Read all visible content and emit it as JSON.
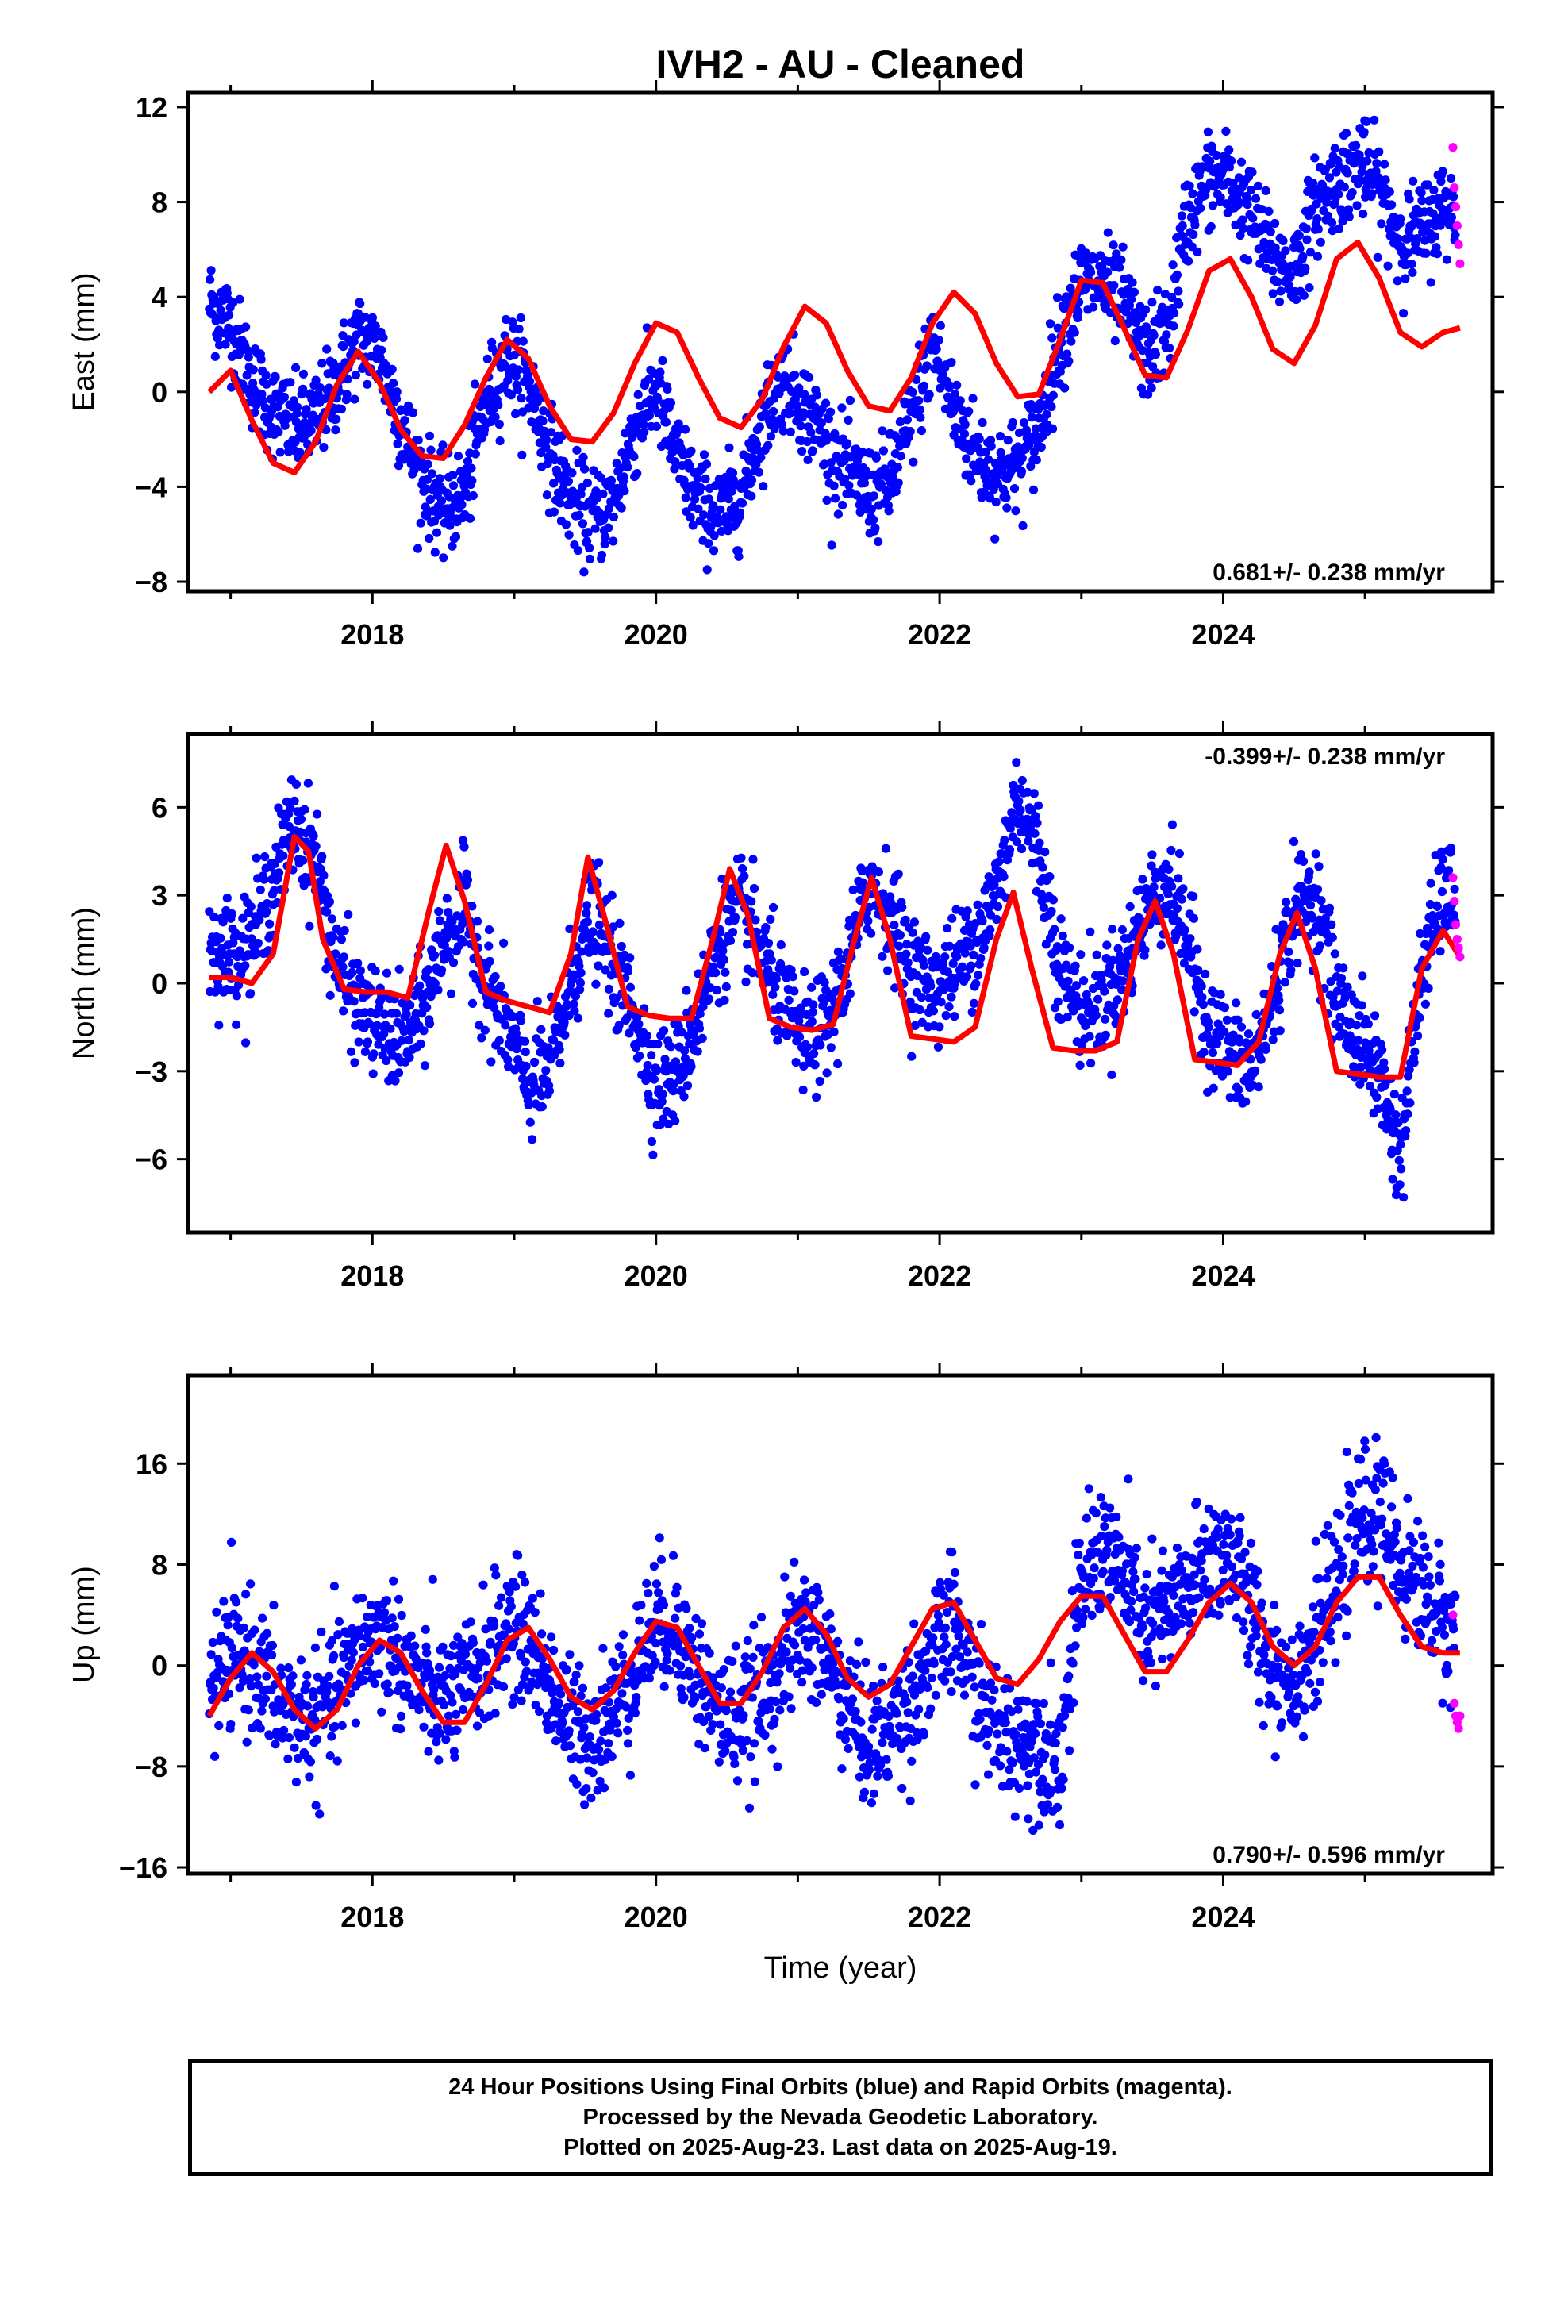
{
  "title": "IVH2  - AU - Cleaned",
  "xlabel": "Time (year)",
  "footer": {
    "line1": "24 Hour Positions Using Final Orbits (blue) and Rapid Orbits (magenta).",
    "line2": "Processed by the Nevada Geodetic Laboratory.",
    "line3": "Plotted on 2025-Aug-23. Last data on 2025-Aug-19."
  },
  "colors": {
    "final": "#0000ff",
    "rapid": "#ff00ff",
    "model": "#ff0000"
  },
  "chart_data": [
    {
      "type": "scatter",
      "title": "IVH2  - AU - Cleaned",
      "ylabel": "East (mm)",
      "xlim": [
        2016.7,
        2025.9
      ],
      "ylim": [
        -8.4,
        12.6
      ],
      "xticks": [
        2018,
        2020,
        2022,
        2024
      ],
      "xtick_labels": [
        "2018",
        "2020",
        "2022",
        "2024"
      ],
      "yticks": [
        -8,
        -4,
        0,
        4,
        8,
        12
      ],
      "ytick_labels": [
        "−8",
        "−4",
        "0",
        "4",
        "8",
        "12"
      ],
      "rate": "0.681+/- 0.238 mm/yr",
      "rate_position": "bottom-right",
      "series": [
        {
          "role": "final",
          "x": [
            2016.85,
            2017.0,
            2017.15,
            2017.3,
            2017.45,
            2017.6,
            2017.75,
            2017.9,
            2018.05,
            2018.2,
            2018.35,
            2018.5,
            2018.65,
            2018.8,
            2018.95,
            2019.1,
            2019.25,
            2019.4,
            2019.55,
            2019.7,
            2019.85,
            2020.0,
            2020.15,
            2020.3,
            2020.45,
            2020.6,
            2020.75,
            2020.9,
            2021.05,
            2021.2,
            2021.35,
            2021.5,
            2021.65,
            2021.8,
            2021.95,
            2022.1,
            2022.25,
            2022.4,
            2022.55,
            2022.7,
            2022.85,
            2023.0,
            2023.15,
            2023.3,
            2023.45,
            2023.6,
            2023.75,
            2023.9,
            2024.05,
            2024.2,
            2024.35,
            2024.5,
            2024.65,
            2024.8,
            2024.95,
            2025.1,
            2025.25,
            2025.4,
            2025.55
          ],
          "y": [
            3.8,
            2.9,
            0.5,
            -0.8,
            -1.5,
            -1.2,
            0.4,
            2.3,
            1.6,
            -1.2,
            -3.6,
            -5.0,
            -4.3,
            -0.5,
            1.5,
            0.4,
            -2.5,
            -4.6,
            -5.3,
            -4.7,
            -1.5,
            0.1,
            -2.8,
            -4.6,
            -5.2,
            -4.3,
            -1.2,
            0.6,
            -0.6,
            -2.1,
            -3.4,
            -4.3,
            -3.8,
            -1.2,
            2.2,
            -0.8,
            -2.6,
            -3.4,
            -3.1,
            -1.6,
            2.3,
            4.6,
            4.6,
            3.7,
            1.6,
            2.4,
            7.4,
            9.0,
            8.8,
            7.4,
            5.6,
            5.0,
            7.8,
            8.9,
            9.6,
            8.6,
            6.4,
            6.8,
            7.8
          ],
          "spread": 1.0
        },
        {
          "role": "rapid",
          "x": [
            2025.62,
            2025.63,
            2025.64,
            2025.65,
            2025.66,
            2025.67
          ],
          "y": [
            10.3,
            8.6,
            7.8,
            7.0,
            6.2,
            5.4
          ]
        },
        {
          "role": "model",
          "x": [
            2016.85,
            2017.0,
            2017.15,
            2017.3,
            2017.45,
            2017.6,
            2017.75,
            2017.9,
            2018.05,
            2018.2,
            2018.35,
            2018.5,
            2018.65,
            2018.8,
            2018.95,
            2019.1,
            2019.25,
            2019.4,
            2019.55,
            2019.7,
            2019.85,
            2020.0,
            2020.15,
            2020.3,
            2020.45,
            2020.6,
            2020.75,
            2020.9,
            2021.05,
            2021.2,
            2021.35,
            2021.5,
            2021.65,
            2021.8,
            2021.95,
            2022.1,
            2022.25,
            2022.4,
            2022.55,
            2022.7,
            2022.85,
            2023.0,
            2023.15,
            2023.3,
            2023.45,
            2023.6,
            2023.75,
            2023.9,
            2024.05,
            2024.2,
            2024.35,
            2024.5,
            2024.65,
            2024.8,
            2024.95,
            2025.1,
            2025.25,
            2025.4,
            2025.55,
            2025.67
          ],
          "y": [
            0.0,
            0.9,
            -1.2,
            -3.0,
            -3.4,
            -2.1,
            0.3,
            1.7,
            0.4,
            -1.6,
            -2.7,
            -2.8,
            -1.4,
            0.6,
            2.2,
            1.4,
            -0.6,
            -2.0,
            -2.1,
            -0.9,
            1.2,
            2.9,
            2.5,
            0.6,
            -1.1,
            -1.5,
            -0.3,
            1.9,
            3.6,
            2.9,
            0.9,
            -0.6,
            -0.8,
            0.6,
            2.9,
            4.2,
            3.3,
            1.2,
            -0.2,
            -0.1,
            2.2,
            4.7,
            4.6,
            2.7,
            0.7,
            0.6,
            2.6,
            5.1,
            5.6,
            4.0,
            1.8,
            1.2,
            2.8,
            5.6,
            6.3,
            4.8,
            2.5,
            1.9,
            2.5,
            2.7
          ]
        }
      ]
    },
    {
      "type": "scatter",
      "ylabel": "North (mm)",
      "xlim": [
        2016.7,
        2025.9
      ],
      "ylim": [
        -8.5,
        8.5
      ],
      "xticks": [
        2018,
        2020,
        2022,
        2024
      ],
      "xtick_labels": [
        "2018",
        "2020",
        "2022",
        "2024"
      ],
      "yticks": [
        -6,
        -3,
        0,
        3,
        6
      ],
      "ytick_labels": [
        "−6",
        "−3",
        "0",
        "3",
        "6"
      ],
      "rate": "-0.399+/- 0.238 mm/yr",
      "rate_position": "top-right",
      "series": [
        {
          "role": "final",
          "x": [
            2016.85,
            2017.0,
            2017.15,
            2017.3,
            2017.45,
            2017.6,
            2017.75,
            2017.9,
            2018.05,
            2018.2,
            2018.35,
            2018.5,
            2018.65,
            2018.8,
            2018.95,
            2019.1,
            2019.25,
            2019.4,
            2019.55,
            2019.7,
            2019.85,
            2020.0,
            2020.15,
            2020.3,
            2020.45,
            2020.6,
            2020.75,
            2020.9,
            2021.05,
            2021.2,
            2021.35,
            2021.5,
            2021.65,
            2021.8,
            2021.95,
            2022.1,
            2022.25,
            2022.4,
            2022.55,
            2022.7,
            2022.85,
            2023.0,
            2023.15,
            2023.3,
            2023.45,
            2023.6,
            2023.75,
            2023.9,
            2024.05,
            2024.2,
            2024.35,
            2024.5,
            2024.65,
            2024.8,
            2024.95,
            2025.1,
            2025.25,
            2025.4,
            2025.55
          ],
          "y": [
            1.2,
            1.0,
            1.5,
            3.5,
            5.5,
            4.2,
            0.6,
            -0.8,
            -1.5,
            -2.0,
            -1.0,
            1.5,
            2.5,
            0.0,
            -1.5,
            -3.5,
            -3.0,
            0.0,
            2.5,
            0.5,
            -1.0,
            -3.5,
            -3.0,
            -1.0,
            1.5,
            2.5,
            1.0,
            -0.8,
            -2.0,
            -1.5,
            0.5,
            3.5,
            2.5,
            0.5,
            -0.2,
            0.5,
            1.5,
            3.0,
            6.5,
            4.5,
            0.5,
            -1.0,
            -0.5,
            0.5,
            2.5,
            3.5,
            1.5,
            -1.5,
            -2.5,
            -3.0,
            -0.5,
            2.5,
            3.0,
            -0.5,
            -2.0,
            -3.0,
            -6.0,
            0.5,
            3.0
          ],
          "spread": 0.9
        },
        {
          "role": "rapid",
          "x": [
            2025.62,
            2025.63,
            2025.64,
            2025.65,
            2025.66,
            2025.67
          ],
          "y": [
            3.6,
            2.8,
            2.0,
            1.5,
            1.2,
            0.9
          ]
        },
        {
          "role": "model",
          "x": [
            2016.85,
            2017.0,
            2017.15,
            2017.3,
            2017.45,
            2017.55,
            2017.65,
            2017.8,
            2017.95,
            2018.1,
            2018.25,
            2018.4,
            2018.52,
            2018.65,
            2018.8,
            2018.95,
            2019.1,
            2019.25,
            2019.4,
            2019.52,
            2019.65,
            2019.8,
            2019.95,
            2020.1,
            2020.25,
            2020.4,
            2020.52,
            2020.65,
            2020.8,
            2020.95,
            2021.1,
            2021.25,
            2021.4,
            2021.52,
            2021.65,
            2021.8,
            2021.95,
            2022.1,
            2022.25,
            2022.4,
            2022.52,
            2022.65,
            2022.8,
            2022.95,
            2023.1,
            2023.25,
            2023.4,
            2023.52,
            2023.65,
            2023.8,
            2023.95,
            2024.1,
            2024.25,
            2024.4,
            2024.52,
            2024.65,
            2024.8,
            2024.95,
            2025.1,
            2025.25,
            2025.4,
            2025.55,
            2025.67
          ],
          "y": [
            0.2,
            0.2,
            0.0,
            1.0,
            5.0,
            4.5,
            1.5,
            -0.2,
            -0.3,
            -0.3,
            -0.5,
            2.5,
            4.7,
            2.8,
            -0.3,
            -0.6,
            -0.8,
            -1.0,
            1.0,
            4.3,
            2.0,
            -0.8,
            -1.1,
            -1.2,
            -1.2,
            1.5,
            3.9,
            2.3,
            -1.2,
            -1.5,
            -1.6,
            -1.4,
            1.5,
            3.6,
            1.5,
            -1.8,
            -1.9,
            -2.0,
            -1.5,
            1.5,
            3.1,
            0.5,
            -2.2,
            -2.3,
            -2.3,
            -2.0,
            1.5,
            2.8,
            1.0,
            -2.6,
            -2.7,
            -2.8,
            -2.0,
            1.0,
            2.4,
            0.5,
            -3.0,
            -3.1,
            -3.2,
            -3.2,
            0.5,
            1.8,
            0.9
          ]
        }
      ]
    },
    {
      "type": "scatter",
      "ylabel": "Up (mm)",
      "xlim": [
        2016.7,
        2025.9
      ],
      "ylim": [
        -16.5,
        23
      ],
      "xticks": [
        2018,
        2020,
        2022,
        2024
      ],
      "xtick_labels": [
        "2018",
        "2020",
        "2022",
        "2024"
      ],
      "yticks": [
        -16,
        -8,
        0,
        8,
        16
      ],
      "ytick_labels": [
        "−16",
        "−8",
        "0",
        "8",
        "16"
      ],
      "rate": "0.790+/- 0.596 mm/yr",
      "rate_position": "bottom-right",
      "series": [
        {
          "role": "final",
          "x": [
            2016.85,
            2017.0,
            2017.15,
            2017.3,
            2017.45,
            2017.6,
            2017.75,
            2017.9,
            2018.05,
            2018.2,
            2018.35,
            2018.5,
            2018.65,
            2018.8,
            2018.95,
            2019.1,
            2019.25,
            2019.4,
            2019.55,
            2019.7,
            2019.85,
            2020.0,
            2020.15,
            2020.3,
            2020.45,
            2020.6,
            2020.75,
            2020.9,
            2021.05,
            2021.2,
            2021.35,
            2021.5,
            2021.65,
            2021.8,
            2021.95,
            2022.1,
            2022.25,
            2022.4,
            2022.55,
            2022.7,
            2022.85,
            2023.0,
            2023.15,
            2023.3,
            2023.45,
            2023.6,
            2023.75,
            2023.9,
            2024.05,
            2024.2,
            2024.35,
            2024.5,
            2024.65,
            2024.8,
            2024.95,
            2025.1,
            2025.25,
            2025.4,
            2025.55
          ],
          "y": [
            -2.0,
            0.5,
            0.5,
            -2.5,
            -4.0,
            -4.5,
            -2.0,
            1.0,
            2.5,
            0.5,
            -2.0,
            -3.0,
            -2.0,
            0.5,
            3.0,
            2.0,
            -1.5,
            -5.0,
            -5.5,
            -3.5,
            0.0,
            3.5,
            3.0,
            -1.0,
            -4.0,
            -4.0,
            -2.5,
            0.5,
            3.0,
            1.0,
            -3.0,
            -6.5,
            -5.0,
            -2.5,
            0.5,
            3.5,
            -2.0,
            -5.0,
            -6.0,
            -6.0,
            -7.5,
            6.5,
            9.5,
            7.0,
            3.0,
            4.0,
            6.0,
            8.5,
            9.0,
            4.0,
            0.0,
            -1.0,
            2.0,
            6.0,
            11.5,
            12.0,
            8.0,
            6.0,
            3.0
          ],
          "spread": 2.6
        },
        {
          "role": "rapid",
          "x": [
            2025.62,
            2025.63,
            2025.64,
            2025.65,
            2025.66,
            2025.67
          ],
          "y": [
            4.0,
            -3.0,
            -4.0,
            -4.5,
            -5.0,
            -4.0
          ]
        },
        {
          "role": "model",
          "x": [
            2016.85,
            2017.0,
            2017.15,
            2017.3,
            2017.45,
            2017.6,
            2017.75,
            2017.9,
            2018.05,
            2018.2,
            2018.35,
            2018.5,
            2018.65,
            2018.8,
            2018.95,
            2019.1,
            2019.25,
            2019.4,
            2019.55,
            2019.7,
            2019.85,
            2020.0,
            2020.15,
            2020.3,
            2020.45,
            2020.6,
            2020.75,
            2020.9,
            2021.05,
            2021.2,
            2021.35,
            2021.5,
            2021.65,
            2021.8,
            2021.95,
            2022.1,
            2022.25,
            2022.4,
            2022.55,
            2022.7,
            2022.85,
            2023.0,
            2023.15,
            2023.3,
            2023.45,
            2023.6,
            2023.75,
            2023.9,
            2024.05,
            2024.2,
            2024.35,
            2024.5,
            2024.65,
            2024.8,
            2024.95,
            2025.1,
            2025.25,
            2025.4,
            2025.55,
            2025.67
          ],
          "y": [
            -4.0,
            -1.0,
            1.0,
            -0.5,
            -3.5,
            -5.0,
            -3.5,
            0.0,
            2.0,
            1.0,
            -2.0,
            -4.5,
            -4.5,
            -1.5,
            2.0,
            3.0,
            0.5,
            -2.5,
            -3.5,
            -2.0,
            1.0,
            3.5,
            3.0,
            0.0,
            -3.0,
            -3.0,
            -0.5,
            3.0,
            4.5,
            2.5,
            -1.0,
            -2.5,
            -1.5,
            1.5,
            4.5,
            5.0,
            2.0,
            -1.0,
            -1.5,
            0.5,
            3.5,
            5.5,
            5.5,
            2.5,
            -0.5,
            -0.5,
            2.0,
            5.0,
            6.5,
            5.0,
            1.5,
            0.0,
            1.5,
            5.0,
            7.0,
            7.0,
            4.0,
            1.5,
            1.0,
            1.0
          ]
        }
      ]
    }
  ]
}
